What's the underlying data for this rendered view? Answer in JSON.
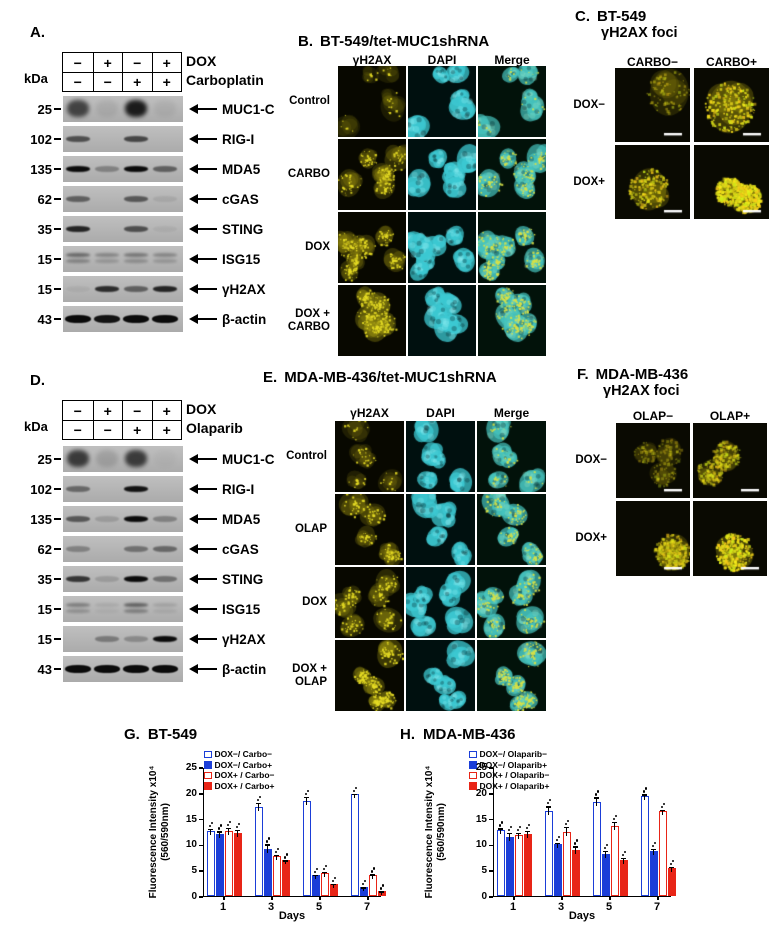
{
  "colors": {
    "blue": "#1b3ed8",
    "red": "#e82517",
    "dapi_cyan": "#2fc8d2",
    "foci_yellow": "#d9d91e",
    "blot_bg": "#b6b6b6"
  },
  "panelA": {
    "label": "A.",
    "kda_label": "kDa",
    "treatments": [
      {
        "label": "DOX",
        "signs": [
          "−",
          "+",
          "−",
          "+"
        ]
      },
      {
        "label": "Carboplatin",
        "signs": [
          "−",
          "−",
          "+",
          "+"
        ]
      }
    ],
    "blots": [
      {
        "kda": "25",
        "protein": "MUC1-C",
        "bands": [
          0.75,
          0.08,
          1.0,
          0.06
        ],
        "style": "smear"
      },
      {
        "kda": "102",
        "protein": "RIG-I",
        "bands": [
          0.6,
          0.0,
          0.65,
          0.0
        ],
        "style": "band"
      },
      {
        "kda": "135",
        "protein": "MDA5",
        "bands": [
          1.0,
          0.3,
          1.0,
          0.5
        ],
        "style": "band"
      },
      {
        "kda": "62",
        "protein": "cGAS",
        "bands": [
          0.5,
          0.0,
          0.55,
          0.08
        ],
        "style": "band"
      },
      {
        "kda": "35",
        "protein": "STING",
        "bands": [
          0.85,
          0.0,
          0.6,
          0.05
        ],
        "style": "band"
      },
      {
        "kda": "15",
        "protein": "ISG15",
        "bands": [
          0.55,
          0.35,
          0.45,
          0.35
        ],
        "style": "fuzzy"
      },
      {
        "kda": "15",
        "protein": "γH2AX",
        "bands": [
          0.05,
          0.8,
          0.5,
          0.85
        ],
        "style": "band"
      },
      {
        "kda": "43",
        "protein": "β-actin",
        "bands": [
          1.0,
          0.95,
          1.0,
          1.0
        ],
        "style": "thick"
      }
    ]
  },
  "panelD": {
    "label": "D.",
    "kda_label": "kDa",
    "treatments": [
      {
        "label": "DOX",
        "signs": [
          "−",
          "+",
          "−",
          "+"
        ]
      },
      {
        "label": "Olaparib",
        "signs": [
          "−",
          "−",
          "+",
          "+"
        ]
      }
    ],
    "blots": [
      {
        "kda": "25",
        "protein": "MUC1-C",
        "bands": [
          0.8,
          0.15,
          0.8,
          0.03
        ],
        "style": "smear"
      },
      {
        "kda": "102",
        "protein": "RIG-I",
        "bands": [
          0.45,
          0.0,
          0.95,
          0.0
        ],
        "style": "band"
      },
      {
        "kda": "135",
        "protein": "MDA5",
        "bands": [
          0.55,
          0.15,
          1.0,
          0.3
        ],
        "style": "band"
      },
      {
        "kda": "62",
        "protein": "cGAS",
        "bands": [
          0.3,
          0.02,
          0.4,
          0.45
        ],
        "style": "band"
      },
      {
        "kda": "35",
        "protein": "STING",
        "bands": [
          0.75,
          0.15,
          1.0,
          0.4
        ],
        "style": "band"
      },
      {
        "kda": "15",
        "protein": "ISG15",
        "bands": [
          0.4,
          0.1,
          0.6,
          0.15
        ],
        "style": "fuzzy"
      },
      {
        "kda": "15",
        "protein": "γH2AX",
        "bands": [
          0.0,
          0.35,
          0.25,
          1.0
        ],
        "style": "band"
      },
      {
        "kda": "43",
        "protein": "β-actin",
        "bands": [
          1.0,
          1.0,
          1.0,
          1.0
        ],
        "style": "thick"
      }
    ]
  },
  "panelB": {
    "label": "B.",
    "title": "BT-549/tet-MUC1shRNA",
    "columns": [
      "γH2AX",
      "DAPI",
      "Merge"
    ],
    "rows": [
      {
        "label_lines": [
          "Control"
        ],
        "foci_level": 0.1
      },
      {
        "label_lines": [
          "CARBO"
        ],
        "foci_level": 0.5
      },
      {
        "label_lines": [
          "DOX"
        ],
        "foci_level": 0.55
      },
      {
        "label_lines": [
          "DOX +",
          "CARBO"
        ],
        "foci_level": 0.85
      }
    ]
  },
  "panelC": {
    "label": "C.",
    "title_line1": "BT-549",
    "title_line2": "γH2AX foci",
    "columns": [
      "CARBO−",
      "CARBO+"
    ],
    "rows": [
      {
        "label": "DOX−",
        "cells": [
          {
            "level": 0.2,
            "n": 1
          },
          {
            "level": 0.75,
            "n": 1
          }
        ]
      },
      {
        "label": "DOX+",
        "cells": [
          {
            "level": 0.55,
            "n": 1
          },
          {
            "level": 0.95,
            "n": 2
          }
        ]
      }
    ]
  },
  "panelE": {
    "label": "E.",
    "title": "MDA-MB-436/tet-MUC1shRNA",
    "columns": [
      "γH2AX",
      "DAPI",
      "Merge"
    ],
    "rows": [
      {
        "label_lines": [
          "Control"
        ],
        "foci_level": 0.18
      },
      {
        "label_lines": [
          "OLAP"
        ],
        "foci_level": 0.5
      },
      {
        "label_lines": [
          "DOX"
        ],
        "foci_level": 0.45
      },
      {
        "label_lines": [
          "DOX +",
          "OLAP"
        ],
        "foci_level": 0.8
      }
    ]
  },
  "panelF": {
    "label": "F.",
    "title_line1": "MDA-MB-436",
    "title_line2": "γH2AX foci",
    "columns": [
      "OLAP−",
      "OLAP+"
    ],
    "rows": [
      {
        "label": "DOX−",
        "cells": [
          {
            "level": 0.06,
            "n": 3
          },
          {
            "level": 0.35,
            "n": 2
          }
        ]
      },
      {
        "label": "DOX+",
        "cells": [
          {
            "level": 0.5,
            "n": 2
          },
          {
            "level": 0.9,
            "n": 1
          }
        ]
      }
    ]
  },
  "chart_data": [
    {
      "type": "bar",
      "panel_label": "G.",
      "title": "BT-549",
      "categories": [
        "1",
        "3",
        "5",
        "7"
      ],
      "xlabel": "Days",
      "ylabel_line1": "Fluorescence Intensity x10⁴",
      "ylabel_line2": "(560/590nm)",
      "ylim": [
        0,
        25
      ],
      "yticks": [
        0,
        5,
        10,
        15,
        20,
        25
      ],
      "grid": false,
      "legend_position": "top-left",
      "series": [
        {
          "name": "DOX−/ Carbo−",
          "style": "open-blue",
          "values": [
            12.6,
            17.2,
            18.5,
            19.7
          ],
          "errors": [
            0.6,
            1.0,
            0.9,
            0.3
          ]
        },
        {
          "name": "DOX−/ Carbo+",
          "style": "solid-blue",
          "values": [
            12.0,
            9.2,
            4.0,
            1.7
          ],
          "errors": [
            0.7,
            1.0,
            0.3,
            0.2
          ]
        },
        {
          "name": "DOX+ / Carbo−",
          "style": "open-red",
          "values": [
            12.6,
            7.8,
            4.4,
            4.0
          ],
          "errors": [
            0.8,
            0.4,
            0.5,
            0.4
          ]
        },
        {
          "name": "DOX+ / Carbo+",
          "style": "solid-red",
          "values": [
            12.2,
            6.9,
            2.3,
            1.0
          ],
          "errors": [
            0.8,
            0.2,
            0.3,
            0.1
          ]
        }
      ]
    },
    {
      "type": "bar",
      "panel_label": "H.",
      "title": "MDA-MB-436",
      "categories": [
        "1",
        "3",
        "5",
        "7"
      ],
      "xlabel": "Days",
      "ylabel_line1": "Fluorescence Intensity x10⁴",
      "ylabel_line2": "(560/590nm)",
      "ylim": [
        0,
        25
      ],
      "yticks": [
        0,
        5,
        10,
        15,
        20,
        25
      ],
      "grid": false,
      "legend_position": "top-left",
      "series": [
        {
          "name": "DOX−/ Olaparib−",
          "style": "open-blue",
          "values": [
            12.7,
            16.5,
            18.3,
            19.4
          ],
          "errors": [
            0.6,
            1.1,
            1.0,
            0.5
          ]
        },
        {
          "name": "DOX−/ Olaparib+",
          "style": "solid-blue",
          "values": [
            11.5,
            10.0,
            8.2,
            8.8
          ],
          "errors": [
            1.0,
            0.5,
            0.8,
            0.6
          ]
        },
        {
          "name": "DOX+ / Olaparib−",
          "style": "open-red",
          "values": [
            11.8,
            12.4,
            13.6,
            16.5
          ],
          "errors": [
            0.7,
            1.2,
            1.0,
            0.4
          ]
        },
        {
          "name": "DOX+ / Olaparib+",
          "style": "solid-red",
          "values": [
            12.0,
            9.0,
            6.9,
            5.5
          ],
          "errors": [
            0.8,
            0.8,
            0.7,
            0.3
          ]
        }
      ]
    }
  ]
}
